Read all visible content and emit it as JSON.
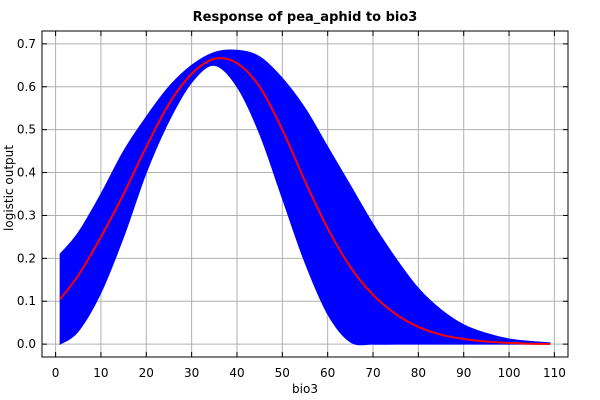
{
  "chart_data": {
    "type": "line",
    "title": "Response of pea_aphid to bio3",
    "xlabel": "bio3",
    "ylabel": "logistic output",
    "xlim": [
      -3,
      113
    ],
    "ylim": [
      -0.03,
      0.73
    ],
    "xticks": [
      0,
      10,
      20,
      30,
      40,
      50,
      60,
      70,
      80,
      90,
      100,
      110
    ],
    "yticks": [
      0.0,
      0.1,
      0.2,
      0.3,
      0.4,
      0.5,
      0.6,
      0.7
    ],
    "grid": true,
    "mean_color": "#ff0000",
    "band_color": "#0000ff",
    "x": [
      1,
      5,
      10,
      15,
      20,
      25,
      30,
      35,
      40,
      45,
      50,
      55,
      60,
      65,
      70,
      75,
      80,
      85,
      90,
      95,
      100,
      105,
      109
    ],
    "mean": [
      0.105,
      0.16,
      0.25,
      0.35,
      0.46,
      0.56,
      0.63,
      0.665,
      0.655,
      0.6,
      0.5,
      0.38,
      0.27,
      0.18,
      0.115,
      0.07,
      0.04,
      0.022,
      0.012,
      0.006,
      0.003,
      0.001,
      0.0005
    ],
    "lower": [
      0.0,
      0.03,
      0.12,
      0.25,
      0.4,
      0.52,
      0.61,
      0.65,
      0.6,
      0.49,
      0.34,
      0.19,
      0.07,
      0.005,
      0.0,
      0.0,
      0.0,
      0.0,
      0.0,
      0.0,
      0.0,
      0.0,
      0.0
    ],
    "upper": [
      0.21,
      0.26,
      0.35,
      0.45,
      0.53,
      0.6,
      0.65,
      0.68,
      0.685,
      0.67,
      0.62,
      0.55,
      0.46,
      0.37,
      0.28,
      0.2,
      0.13,
      0.08,
      0.045,
      0.025,
      0.012,
      0.006,
      0.003
    ]
  }
}
